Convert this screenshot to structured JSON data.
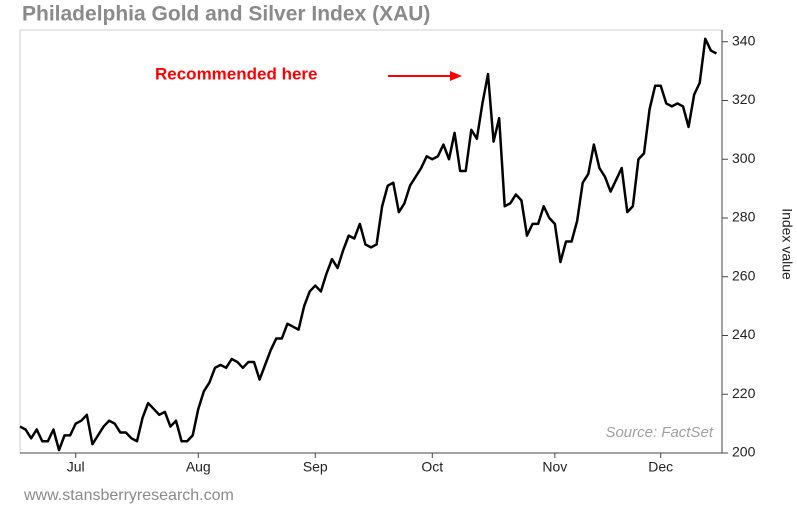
{
  "chart_data": {
    "type": "line",
    "title": "Philadelphia Gold and Silver Index (XAU)",
    "y_label": "Index value",
    "annotation": "Recommended here",
    "source": "Source: FactSet",
    "footer": "www.stansberryresearch.com",
    "color": "#000000",
    "annotation_color": "#ff0000",
    "values": [
      209,
      208,
      205,
      208,
      204,
      204,
      208,
      201,
      206,
      206,
      210,
      211,
      213,
      203,
      206,
      209,
      211,
      210,
      207,
      207,
      205,
      204,
      212,
      217,
      215,
      213,
      214,
      209,
      211,
      204,
      204,
      206,
      215,
      221,
      224,
      229,
      230,
      229,
      232,
      231,
      229,
      231,
      231,
      225,
      230,
      235,
      239,
      239,
      244,
      243,
      242,
      250,
      255,
      257,
      255,
      261,
      266,
      263,
      269,
      274,
      273,
      278,
      271,
      270,
      271,
      284,
      291,
      292,
      282,
      285,
      291,
      294,
      297,
      301,
      300,
      301,
      305,
      300,
      309,
      296,
      296,
      310,
      307,
      319,
      329,
      306,
      314,
      284,
      285,
      288,
      286,
      274,
      278,
      278,
      284,
      280,
      278,
      265,
      272,
      272,
      279,
      292,
      295,
      305,
      297,
      294,
      289,
      293,
      297,
      282,
      284,
      300,
      302,
      317,
      325,
      325,
      319,
      318,
      319,
      318,
      311,
      322,
      326,
      341,
      337,
      336
    ],
    "xlim": [
      0,
      126
    ],
    "xticks": [
      {
        "value": 10,
        "label": "Jul"
      },
      {
        "value": 32,
        "label": "Aug"
      },
      {
        "value": 53,
        "label": "Sep"
      },
      {
        "value": 74,
        "label": "Oct"
      },
      {
        "value": 96,
        "label": "Nov"
      },
      {
        "value": 115,
        "label": "Dec"
      }
    ],
    "ylim": [
      200,
      344
    ],
    "yticks": [
      200,
      220,
      240,
      260,
      280,
      300,
      320,
      340
    ]
  }
}
